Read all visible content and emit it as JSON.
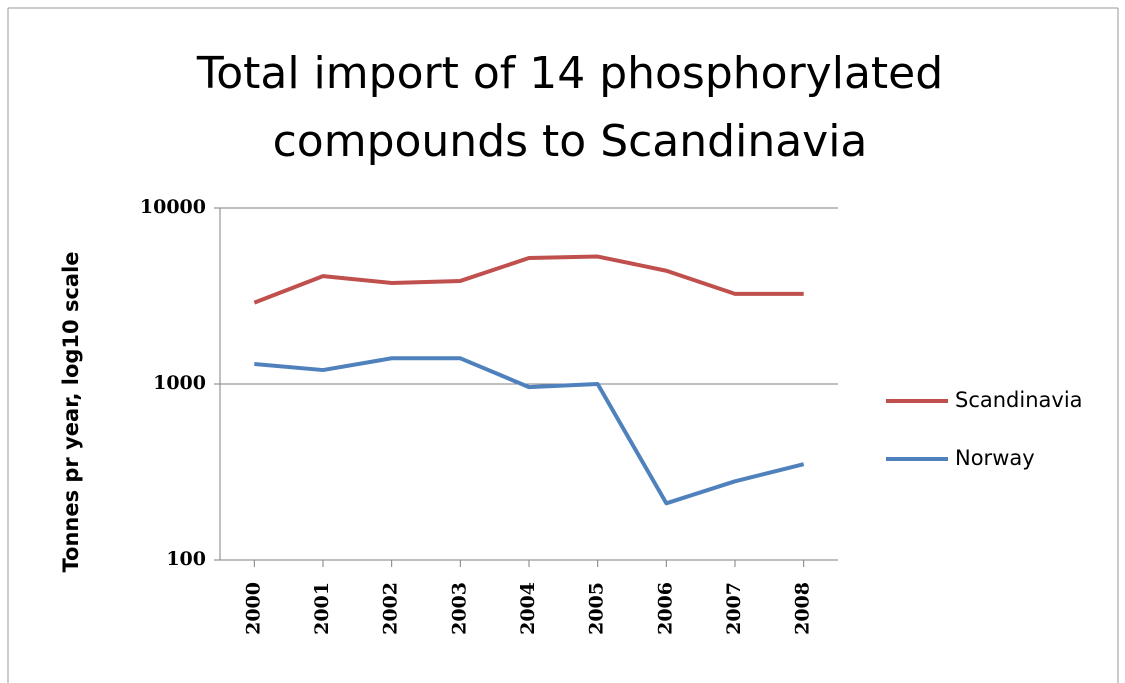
{
  "chart_data": {
    "type": "line",
    "title": "Total import of 14 phosphorylated compounds to Scandinavia",
    "y_label": "Tonnes pr year, log10 scale",
    "categories": [
      "2000",
      "2001",
      "2002",
      "2003",
      "2004",
      "2005",
      "2006",
      "2007",
      "2008"
    ],
    "series": [
      {
        "name": "Scandinavia",
        "color": "#c0504d",
        "values": [
          2900,
          4100,
          3750,
          3850,
          5200,
          5300,
          4400,
          3250,
          3250
        ]
      },
      {
        "name": "Norway",
        "color": "#4f81bd",
        "values": [
          1300,
          1200,
          1400,
          1400,
          960,
          1000,
          210,
          280,
          350
        ]
      }
    ],
    "ylim": [
      100,
      10000
    ],
    "yticks": [
      100,
      1000,
      10000
    ],
    "log_scale": true,
    "grid": true,
    "legend": "right"
  }
}
